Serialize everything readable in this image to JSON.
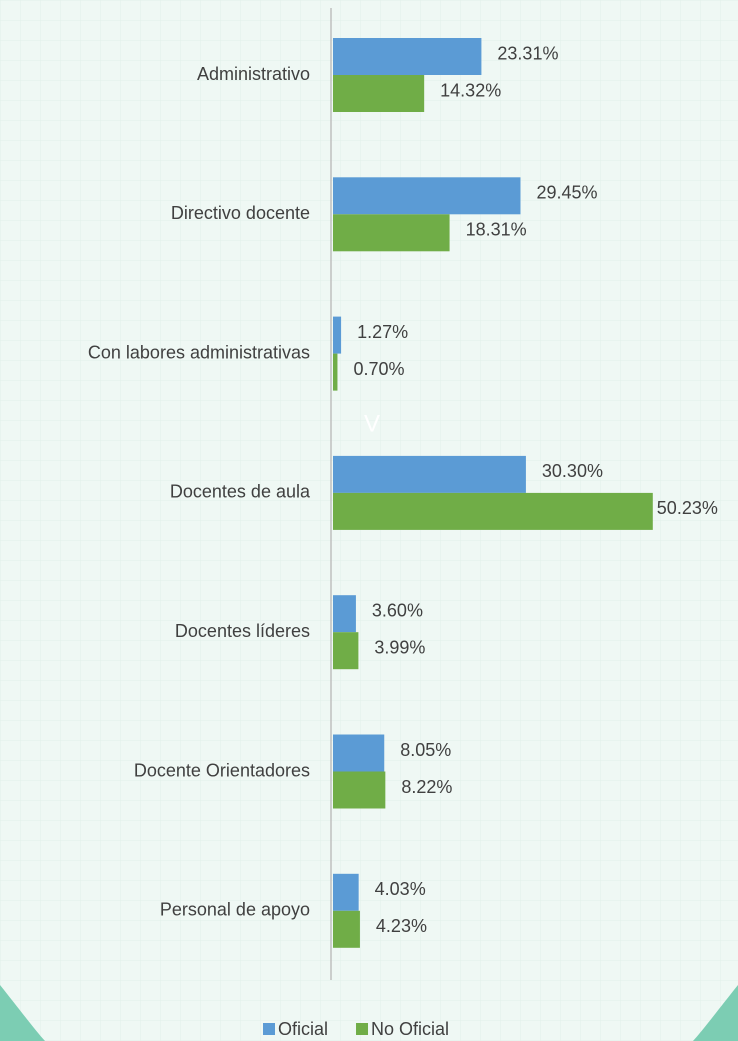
{
  "chart_data": {
    "type": "hbar",
    "categories": [
      "Administrativo",
      "Directivo docente",
      "Con labores administrativas",
      "Docentes de aula",
      "Docentes líderes",
      "Docente Orientadores",
      "Personal de apoyo"
    ],
    "series": [
      {
        "name": "Oficial",
        "color": "#5b9bd5",
        "values": [
          23.31,
          29.45,
          1.27,
          30.3,
          3.6,
          8.05,
          4.03
        ],
        "value_labels": [
          "23.31%",
          "29.45%",
          "1.27%",
          "30.30%",
          "3.60%",
          "8.05%",
          "4.03%"
        ]
      },
      {
        "name": "No Oficial",
        "color": "#70ad47",
        "values": [
          14.32,
          18.31,
          0.7,
          50.23,
          3.99,
          8.22,
          4.23
        ],
        "value_labels": [
          "14.32%",
          "18.31%",
          "0.70%",
          "50.23%",
          "3.99%",
          "8.22%",
          "4.23%"
        ]
      }
    ],
    "xlim": [
      0,
      60
    ],
    "annotation": "V",
    "legend": "bottom"
  }
}
